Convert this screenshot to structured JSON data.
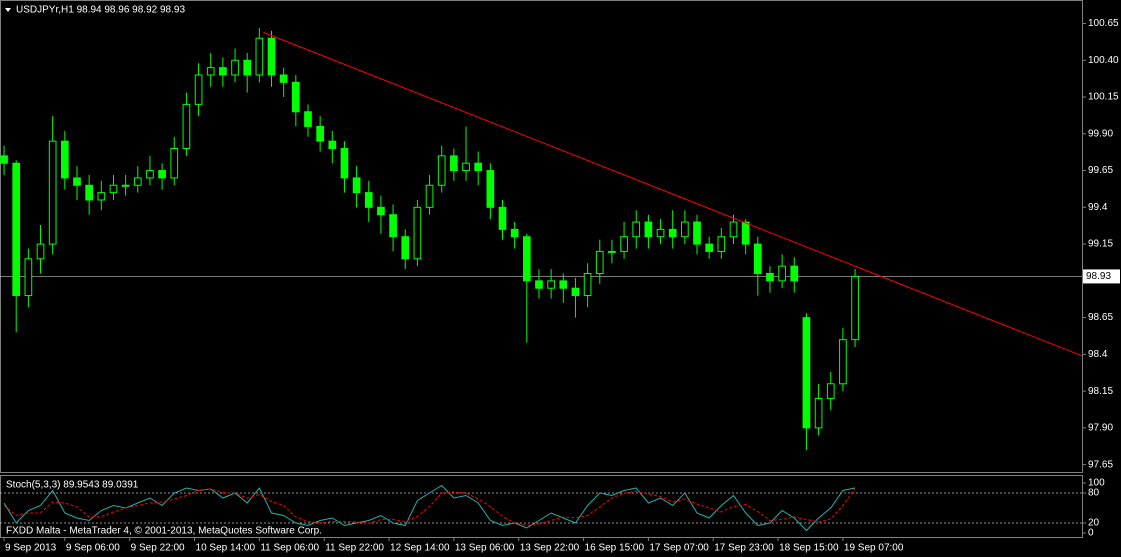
{
  "chart_data": [
    {
      "type": "candlestick",
      "title": "USDJPYr,H1  98.94 98.96 98.92 98.93",
      "footer": "FXDD Malta - MetaTrader 4, © 2001-2013, MetaQuotes Software Corp.",
      "color": "#00ff00",
      "x": [
        0,
        3,
        6,
        9,
        12,
        15,
        18,
        21,
        24,
        27,
        30,
        33,
        36,
        39,
        42,
        45,
        48,
        51,
        54,
        57,
        60,
        63,
        66,
        69,
        72,
        75,
        78,
        81,
        84,
        87,
        90,
        93,
        96,
        99,
        102,
        105,
        108,
        111,
        114,
        117,
        120,
        123,
        126,
        129,
        132,
        135,
        138,
        141,
        144,
        147,
        150,
        153,
        156,
        159,
        162,
        165,
        168,
        171,
        174,
        177,
        180,
        183,
        186,
        189,
        192,
        195,
        198,
        201,
        204,
        207,
        210
      ],
      "open": [
        99.75,
        99.7,
        98.8,
        99.05,
        99.15,
        99.85,
        99.6,
        99.55,
        99.45,
        99.5,
        99.55,
        99.55,
        99.6,
        99.65,
        99.6,
        99.8,
        100.1,
        100.3,
        100.35,
        100.3,
        100.4,
        100.3,
        100.55,
        100.3,
        100.25,
        100.05,
        99.95,
        99.85,
        99.8,
        99.6,
        99.5,
        99.4,
        99.35,
        99.2,
        99.05,
        99.4,
        99.55,
        99.75,
        99.65,
        99.7,
        99.65,
        99.4,
        99.25,
        99.2,
        98.9,
        98.85,
        98.9,
        98.85,
        98.8,
        98.95,
        99.1,
        99.1,
        99.2,
        99.3,
        99.2,
        99.25,
        99.2,
        99.3,
        99.15,
        99.1,
        99.2,
        99.3,
        99.15,
        98.95,
        98.9,
        99.0,
        98.65,
        97.9,
        98.1,
        98.2,
        98.5
      ],
      "high": [
        99.82,
        99.72,
        99.12,
        99.28,
        100.02,
        99.92,
        99.68,
        99.62,
        99.58,
        99.62,
        99.62,
        99.68,
        99.75,
        99.7,
        99.88,
        100.18,
        100.38,
        100.45,
        100.42,
        100.48,
        100.45,
        100.62,
        100.6,
        100.35,
        100.3,
        100.1,
        100.02,
        99.92,
        99.85,
        99.68,
        99.58,
        99.48,
        99.42,
        99.25,
        99.45,
        99.62,
        99.82,
        99.8,
        99.95,
        99.78,
        99.7,
        99.45,
        99.3,
        99.22,
        98.98,
        98.98,
        98.95,
        98.92,
        99.02,
        99.18,
        99.18,
        99.3,
        99.38,
        99.35,
        99.32,
        99.38,
        99.38,
        99.35,
        99.2,
        99.26,
        99.35,
        99.32,
        99.2,
        99.0,
        99.08,
        99.06,
        98.68,
        98.2,
        98.28,
        98.58,
        98.98
      ],
      "low": [
        99.62,
        98.55,
        98.72,
        98.95,
        99.08,
        99.52,
        99.45,
        99.35,
        99.38,
        99.45,
        99.48,
        99.5,
        99.55,
        99.52,
        99.55,
        99.75,
        100.02,
        100.22,
        100.22,
        100.25,
        100.18,
        100.25,
        100.22,
        100.15,
        99.95,
        99.88,
        99.78,
        99.7,
        99.5,
        99.4,
        99.3,
        99.22,
        99.1,
        98.98,
        99.0,
        99.35,
        99.5,
        99.58,
        99.58,
        99.55,
        99.32,
        99.18,
        99.12,
        98.48,
        98.78,
        98.78,
        98.75,
        98.65,
        98.72,
        98.88,
        99.02,
        99.05,
        99.12,
        99.12,
        99.15,
        99.12,
        99.15,
        99.08,
        99.05,
        99.05,
        99.15,
        99.08,
        98.8,
        98.82,
        98.85,
        98.82,
        97.75,
        97.85,
        98.02,
        98.15,
        98.45
      ],
      "close": [
        99.7,
        98.8,
        99.05,
        99.15,
        99.85,
        99.6,
        99.55,
        99.45,
        99.5,
        99.55,
        99.55,
        99.6,
        99.65,
        99.6,
        99.8,
        100.1,
        100.3,
        100.35,
        100.3,
        100.4,
        100.3,
        100.55,
        100.3,
        100.25,
        100.05,
        99.95,
        99.85,
        99.8,
        99.6,
        99.5,
        99.4,
        99.35,
        99.2,
        99.05,
        99.4,
        99.55,
        99.75,
        99.65,
        99.7,
        99.65,
        99.4,
        99.25,
        99.2,
        98.9,
        98.85,
        98.9,
        98.85,
        98.8,
        98.95,
        99.1,
        99.1,
        99.2,
        99.3,
        99.2,
        99.25,
        99.2,
        99.3,
        99.15,
        99.1,
        99.2,
        99.3,
        99.15,
        98.95,
        98.9,
        99.0,
        98.9,
        97.9,
        98.1,
        98.2,
        98.5,
        98.93
      ],
      "xlim": [
        -1,
        266
      ],
      "ylim": [
        97.6,
        100.81
      ],
      "yticks": [
        100.65,
        {
          "value": 100.4,
          "label": "100.40"
        },
        100.15,
        {
          "value": 99.9,
          "label": "99.90"
        },
        99.65,
        99.4,
        99.15,
        98.65,
        98.4,
        98.15,
        {
          "value": 97.9,
          "label": "97.90"
        },
        97.65
      ],
      "xticks": [
        {
          "value": 0,
          "label": "9 Sep 2013"
        },
        {
          "value": 15,
          "label": "9 Sep 06:00"
        },
        {
          "value": 31,
          "label": "9 Sep 22:00"
        },
        {
          "value": 47,
          "label": "10 Sep 14:00"
        },
        {
          "value": 63,
          "label": "11 Sep 06:00"
        },
        {
          "value": 79,
          "label": "11 Sep 22:00"
        },
        {
          "value": 95,
          "label": "12 Sep 14:00"
        },
        {
          "value": 111,
          "label": "13 Sep 06:00"
        },
        {
          "value": 127,
          "label": "13 Sep 22:00"
        },
        {
          "value": 143,
          "label": "16 Sep 15:00"
        },
        {
          "value": 159,
          "label": "17 Sep 07:00"
        },
        {
          "value": 175,
          "label": "17 Sep 23:00"
        },
        {
          "value": 191,
          "label": "18 Sep 15:00"
        },
        {
          "value": 207,
          "label": "19 Sep 07:00"
        }
      ],
      "current_price": 98.93,
      "current_price_color": "#c0c0c0",
      "trendline": {
        "color": "#ff0000",
        "x": [
          64,
          266
        ],
        "y": [
          100.59,
          98.39
        ]
      }
    },
    {
      "type": "line",
      "title": "Stoch(5,3,3) 89.9543 89.0391",
      "x": [
        0,
        3,
        6,
        9,
        12,
        15,
        18,
        21,
        24,
        27,
        30,
        33,
        36,
        39,
        42,
        45,
        48,
        51,
        54,
        57,
        60,
        63,
        66,
        69,
        72,
        75,
        78,
        81,
        84,
        87,
        90,
        93,
        96,
        99,
        102,
        105,
        108,
        111,
        114,
        117,
        120,
        123,
        126,
        129,
        132,
        135,
        138,
        141,
        144,
        147,
        150,
        153,
        156,
        159,
        162,
        165,
        168,
        171,
        174,
        177,
        180,
        183,
        186,
        189,
        192,
        195,
        198,
        201,
        204,
        207,
        210
      ],
      "xlim": [
        -1,
        266
      ],
      "ylim": [
        -8,
        114
      ],
      "yticks": [
        0,
        20,
        80,
        100
      ],
      "levels": [
        20,
        80
      ],
      "series": [
        {
          "color": "#20b2aa",
          "dashed": false,
          "values": [
            60,
            20,
            45,
            55,
            85,
            40,
            30,
            25,
            45,
            55,
            50,
            60,
            70,
            55,
            80,
            90,
            85,
            88,
            70,
            80,
            60,
            90,
            40,
            35,
            20,
            15,
            25,
            30,
            15,
            20,
            25,
            35,
            20,
            15,
            65,
            80,
            95,
            70,
            75,
            60,
            25,
            15,
            20,
            10,
            25,
            40,
            30,
            20,
            55,
            80,
            75,
            85,
            90,
            60,
            70,
            55,
            80,
            40,
            30,
            55,
            75,
            40,
            15,
            20,
            45,
            30,
            5,
            30,
            50,
            85,
            89.9543
          ]
        },
        {
          "color": "#ff0000",
          "dashed": true,
          "values": [
            55,
            35,
            40,
            40,
            62,
            60,
            52,
            32,
            33,
            42,
            50,
            55,
            60,
            62,
            68,
            75,
            85,
            88,
            81,
            79,
            70,
            77,
            63,
            55,
            32,
            23,
            20,
            23,
            23,
            22,
            20,
            27,
            27,
            23,
            33,
            53,
            80,
            82,
            80,
            68,
            53,
            33,
            20,
            15,
            18,
            25,
            32,
            30,
            35,
            52,
            70,
            80,
            83,
            78,
            73,
            62,
            68,
            58,
            50,
            42,
            53,
            57,
            43,
            25,
            27,
            32,
            27,
            22,
            28,
            55,
            89.0391
          ]
        }
      ]
    }
  ]
}
